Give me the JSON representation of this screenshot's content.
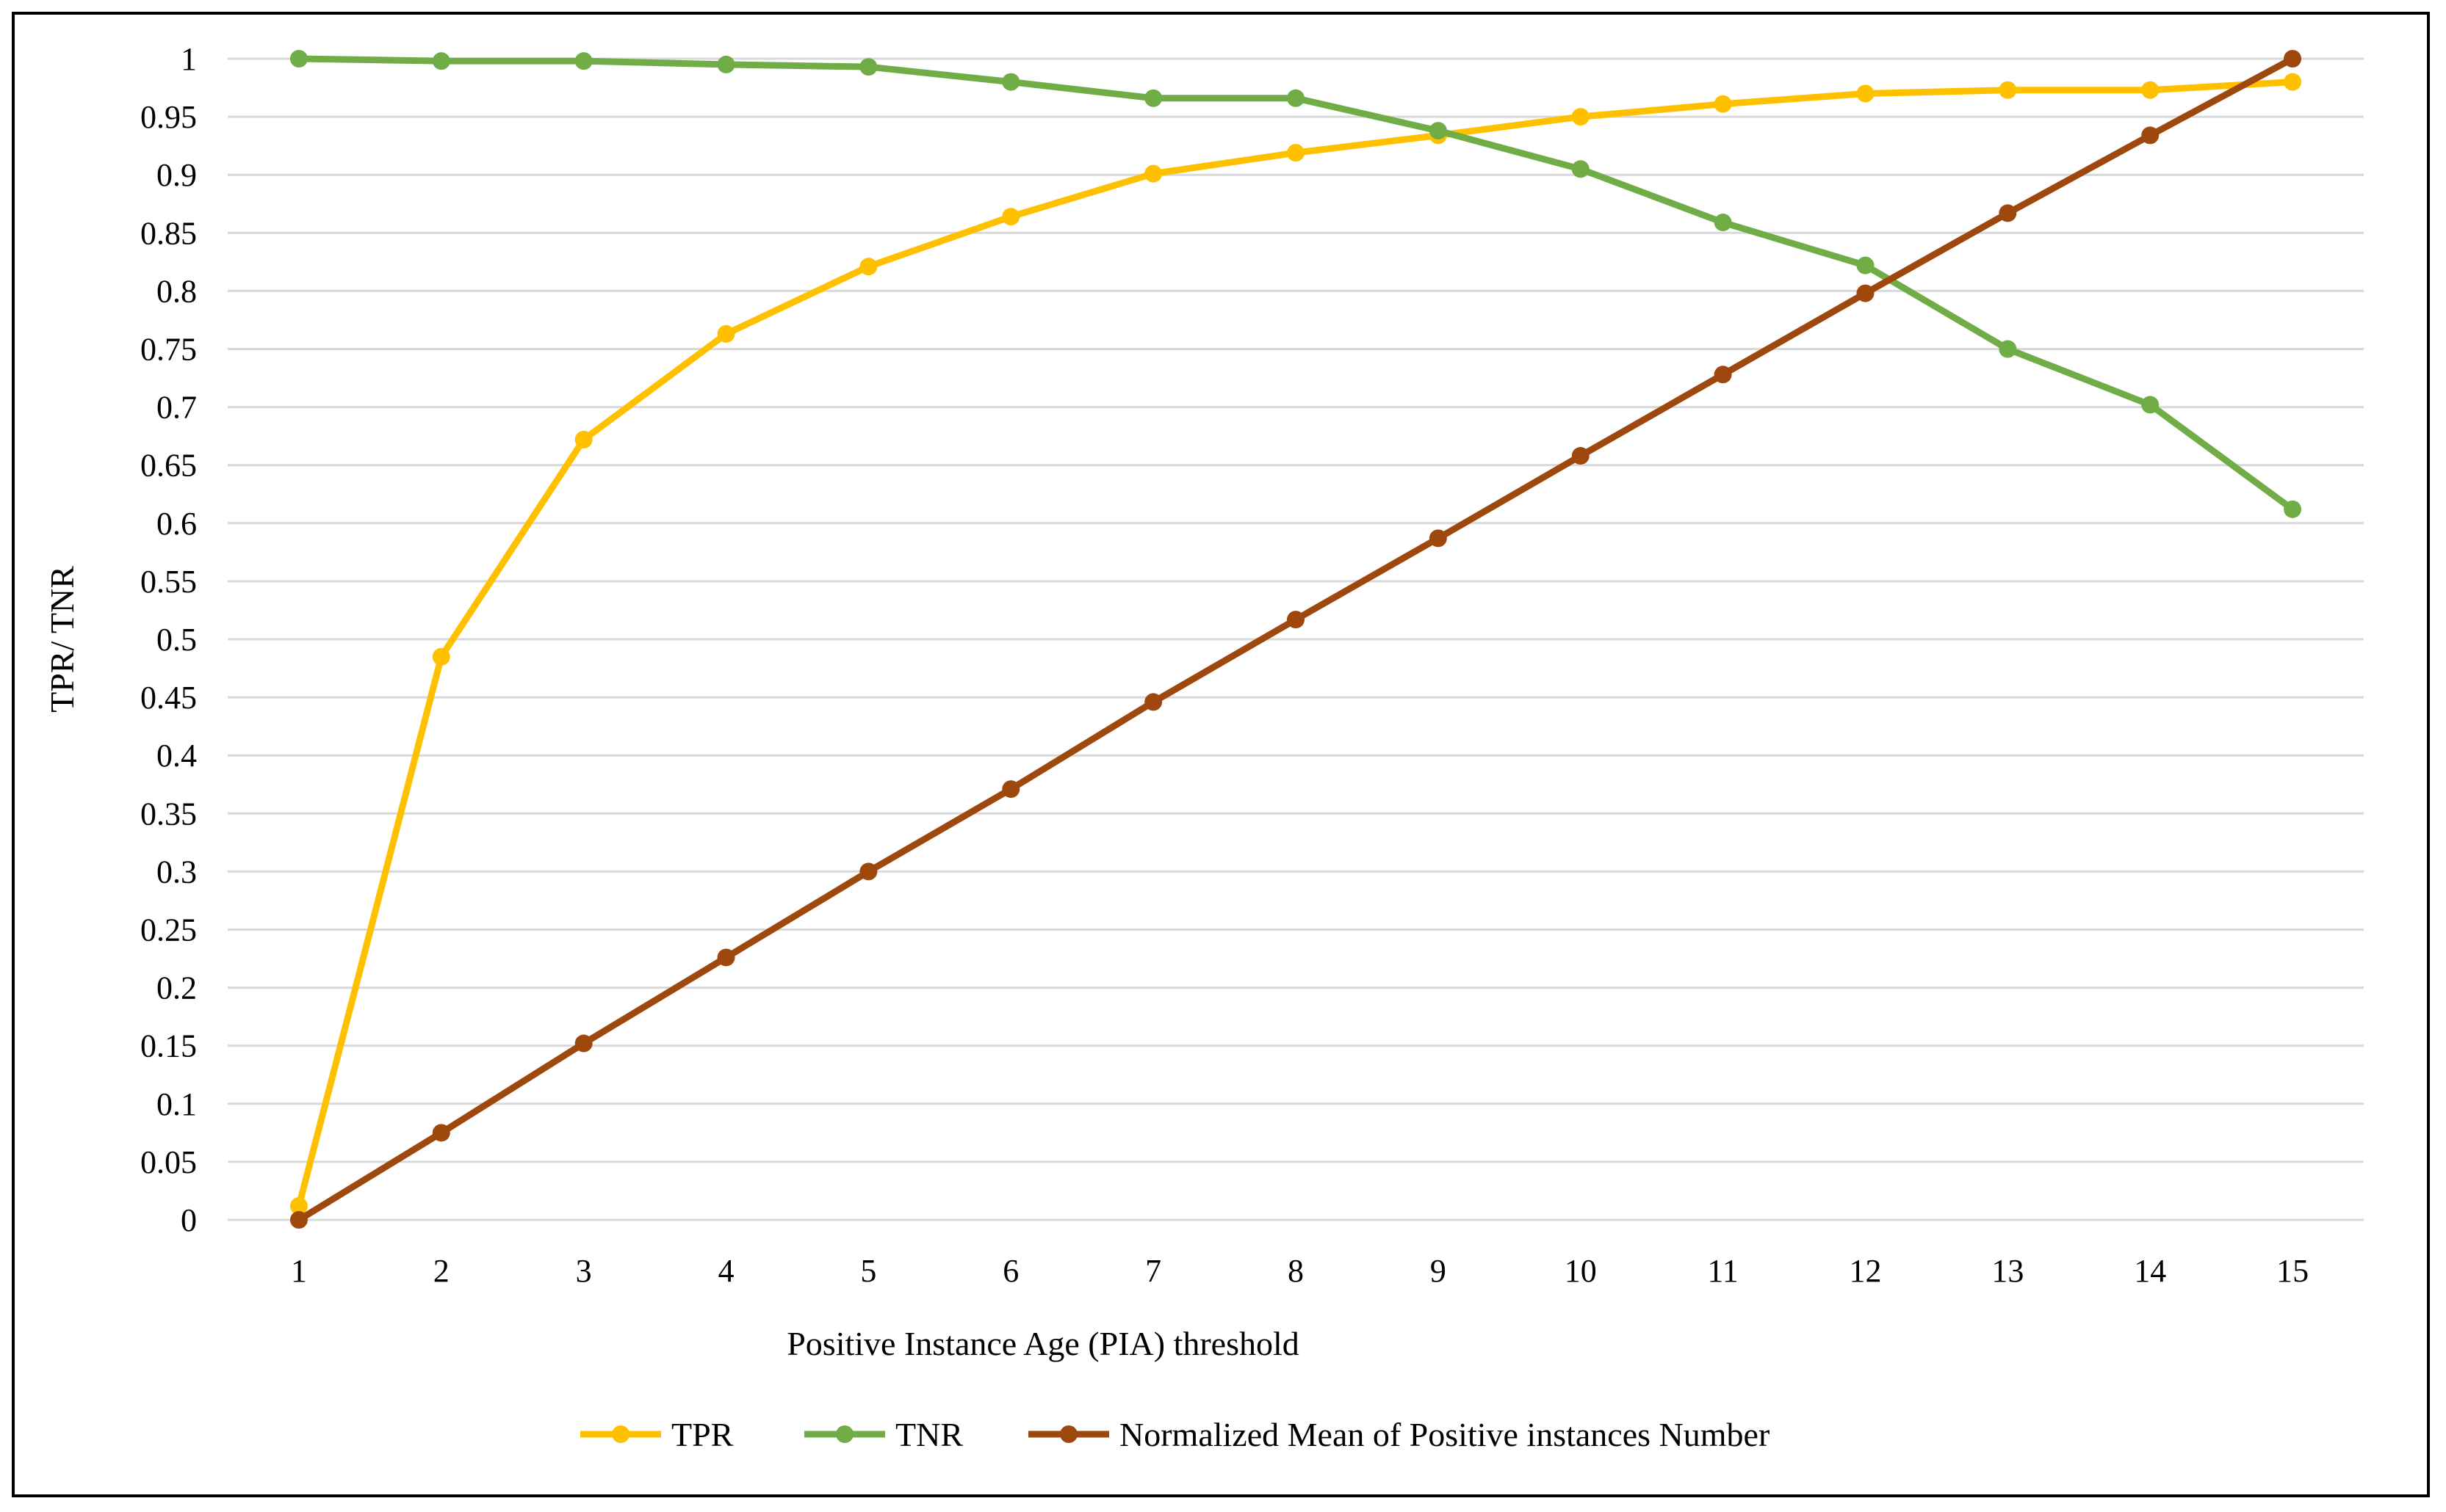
{
  "chart_data": {
    "type": "line",
    "title": "",
    "xlabel": "Positive Instance Age (PIA) threshold",
    "ylabel": "TPR/ TNR",
    "x": [
      1,
      2,
      3,
      4,
      5,
      6,
      7,
      8,
      9,
      10,
      11,
      12,
      13,
      14,
      15
    ],
    "ylim": [
      0,
      1
    ],
    "yticks": [
      "0",
      "0.05",
      "0.1",
      "0.15",
      "0.2",
      "0.25",
      "0.3",
      "0.35",
      "0.4",
      "0.45",
      "0.5",
      "0.55",
      "0.6",
      "0.65",
      "0.7",
      "0.75",
      "0.8",
      "0.85",
      "0.9",
      "0.95",
      "1"
    ],
    "grid": true,
    "legend_position": "bottom",
    "series": [
      {
        "name": "TPR",
        "color": "#FFC000",
        "values": [
          0.012,
          0.485,
          0.672,
          0.763,
          0.821,
          0.864,
          0.901,
          0.919,
          0.934,
          0.95,
          0.961,
          0.97,
          0.973,
          0.973,
          0.98
        ]
      },
      {
        "name": "TNR",
        "color": "#70AD47",
        "values": [
          1.0,
          0.998,
          0.998,
          0.995,
          0.993,
          0.98,
          0.966,
          0.966,
          0.938,
          0.905,
          0.859,
          0.822,
          0.75,
          0.702,
          0.612
        ]
      },
      {
        "name": "Normalized Mean of Positive instances Number",
        "color": "#9E480E",
        "values": [
          0.0,
          0.075,
          0.152,
          0.226,
          0.3,
          0.371,
          0.446,
          0.517,
          0.587,
          0.658,
          0.728,
          0.798,
          0.867,
          0.934,
          1.0
        ]
      }
    ]
  }
}
